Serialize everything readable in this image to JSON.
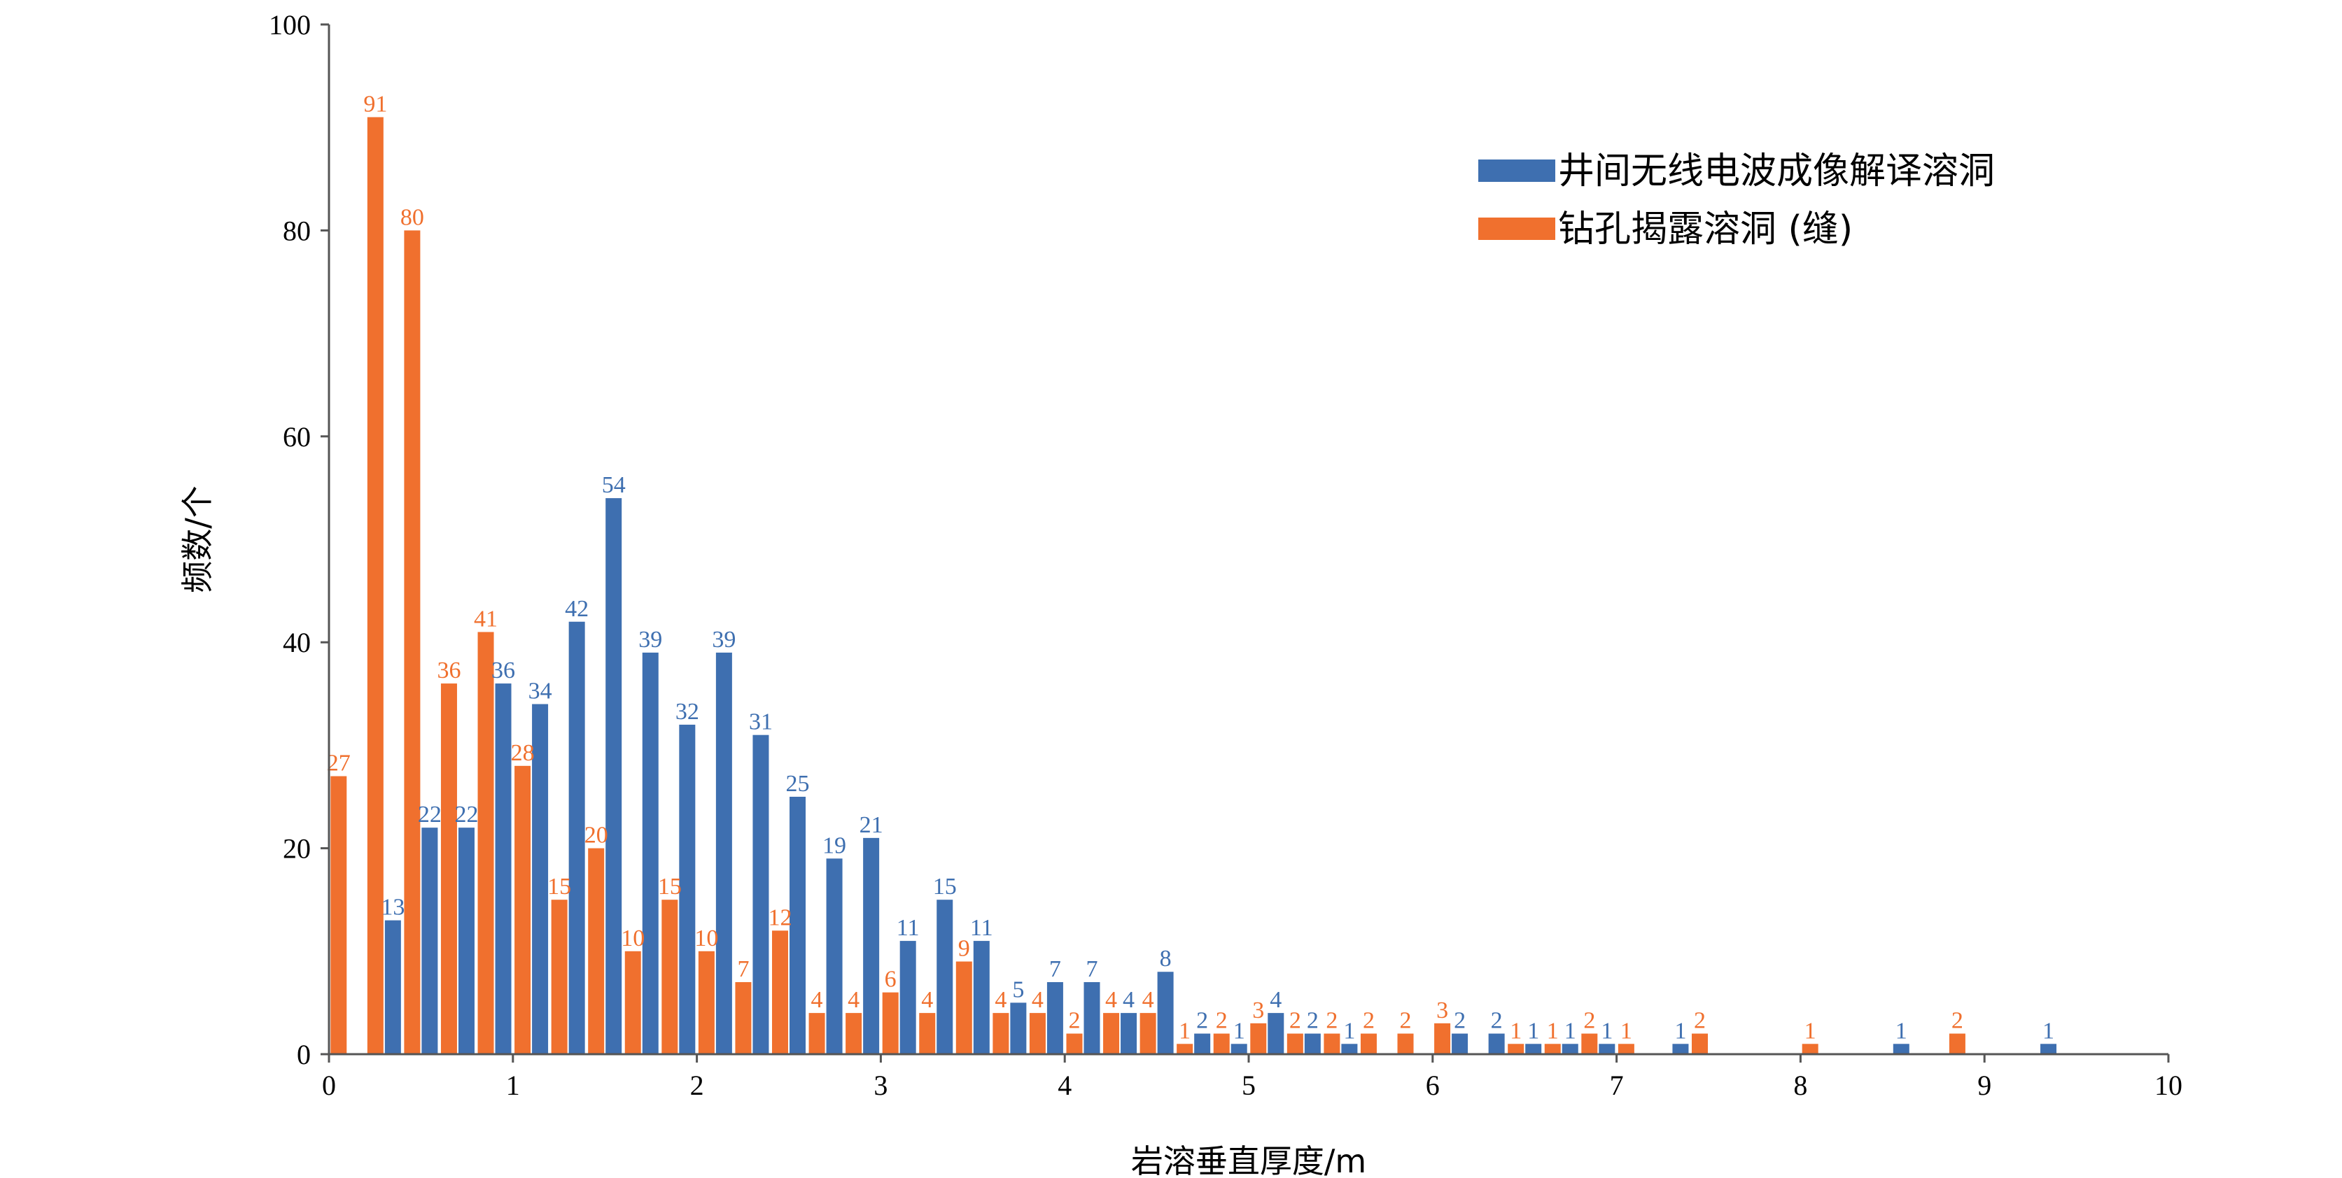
{
  "chart_data": {
    "type": "bar",
    "xlabel": "岩溶垂直厚度/m",
    "ylabel": "频数/个",
    "xlim": [
      0,
      10
    ],
    "ylim": [
      0,
      100
    ],
    "xticks": [
      "0",
      "1",
      "2",
      "3",
      "4",
      "5",
      "6",
      "7",
      "8",
      "9",
      "10"
    ],
    "yticks": [
      "0",
      "20",
      "40",
      "60",
      "80",
      "100"
    ],
    "grid": false,
    "legend_position": "top-right",
    "series": [
      {
        "name": "井间无线电波成像解译溶洞",
        "color": "#3e6fb0",
        "points": [
          {
            "x": 0.3,
            "y": 13
          },
          {
            "x": 0.5,
            "y": 22
          },
          {
            "x": 0.7,
            "y": 22
          },
          {
            "x": 0.9,
            "y": 36
          },
          {
            "x": 1.1,
            "y": 34
          },
          {
            "x": 1.3,
            "y": 42
          },
          {
            "x": 1.5,
            "y": 54
          },
          {
            "x": 1.7,
            "y": 39
          },
          {
            "x": 1.9,
            "y": 32
          },
          {
            "x": 2.1,
            "y": 39
          },
          {
            "x": 2.3,
            "y": 31
          },
          {
            "x": 2.5,
            "y": 25
          },
          {
            "x": 2.7,
            "y": 19
          },
          {
            "x": 2.9,
            "y": 21
          },
          {
            "x": 3.1,
            "y": 11
          },
          {
            "x": 3.3,
            "y": 15
          },
          {
            "x": 3.5,
            "y": 11
          },
          {
            "x": 3.7,
            "y": 5
          },
          {
            "x": 3.9,
            "y": 7
          },
          {
            "x": 4.1,
            "y": 7
          },
          {
            "x": 4.3,
            "y": 4
          },
          {
            "x": 4.5,
            "y": 8
          },
          {
            "x": 4.7,
            "y": 2
          },
          {
            "x": 4.9,
            "y": 1
          },
          {
            "x": 5.1,
            "y": 4
          },
          {
            "x": 5.3,
            "y": 2
          },
          {
            "x": 5.5,
            "y": 1
          },
          {
            "x": 6.1,
            "y": 2
          },
          {
            "x": 6.3,
            "y": 2
          },
          {
            "x": 6.5,
            "y": 1
          },
          {
            "x": 6.7,
            "y": 1
          },
          {
            "x": 6.9,
            "y": 1
          },
          {
            "x": 7.3,
            "y": 1
          },
          {
            "x": 8.5,
            "y": 1
          },
          {
            "x": 9.3,
            "y": 1
          }
        ]
      },
      {
        "name": "钻孔揭露溶洞 (缝)",
        "color": "#f0702e",
        "points": [
          {
            "x": 0.1,
            "y": 27
          },
          {
            "x": 0.3,
            "y": 91
          },
          {
            "x": 0.5,
            "y": 80
          },
          {
            "x": 0.7,
            "y": 36
          },
          {
            "x": 0.9,
            "y": 41
          },
          {
            "x": 1.1,
            "y": 28
          },
          {
            "x": 1.3,
            "y": 15
          },
          {
            "x": 1.5,
            "y": 20
          },
          {
            "x": 1.7,
            "y": 10
          },
          {
            "x": 1.9,
            "y": 15
          },
          {
            "x": 2.1,
            "y": 10
          },
          {
            "x": 2.3,
            "y": 7
          },
          {
            "x": 2.5,
            "y": 12
          },
          {
            "x": 2.7,
            "y": 4
          },
          {
            "x": 2.9,
            "y": 4
          },
          {
            "x": 3.1,
            "y": 6
          },
          {
            "x": 3.3,
            "y": 4
          },
          {
            "x": 3.5,
            "y": 9
          },
          {
            "x": 3.7,
            "y": 4
          },
          {
            "x": 3.9,
            "y": 4
          },
          {
            "x": 4.1,
            "y": 2
          },
          {
            "x": 4.3,
            "y": 4
          },
          {
            "x": 4.5,
            "y": 4
          },
          {
            "x": 4.7,
            "y": 1
          },
          {
            "x": 4.9,
            "y": 2
          },
          {
            "x": 5.1,
            "y": 3
          },
          {
            "x": 5.3,
            "y": 2
          },
          {
            "x": 5.5,
            "y": 2
          },
          {
            "x": 5.7,
            "y": 2
          },
          {
            "x": 5.9,
            "y": 2
          },
          {
            "x": 6.1,
            "y": 3
          },
          {
            "x": 6.5,
            "y": 1
          },
          {
            "x": 6.7,
            "y": 1
          },
          {
            "x": 6.9,
            "y": 2
          },
          {
            "x": 7.1,
            "y": 1
          },
          {
            "x": 7.5,
            "y": 2
          },
          {
            "x": 8.1,
            "y": 1
          },
          {
            "x": 8.9,
            "y": 2
          }
        ]
      }
    ]
  }
}
